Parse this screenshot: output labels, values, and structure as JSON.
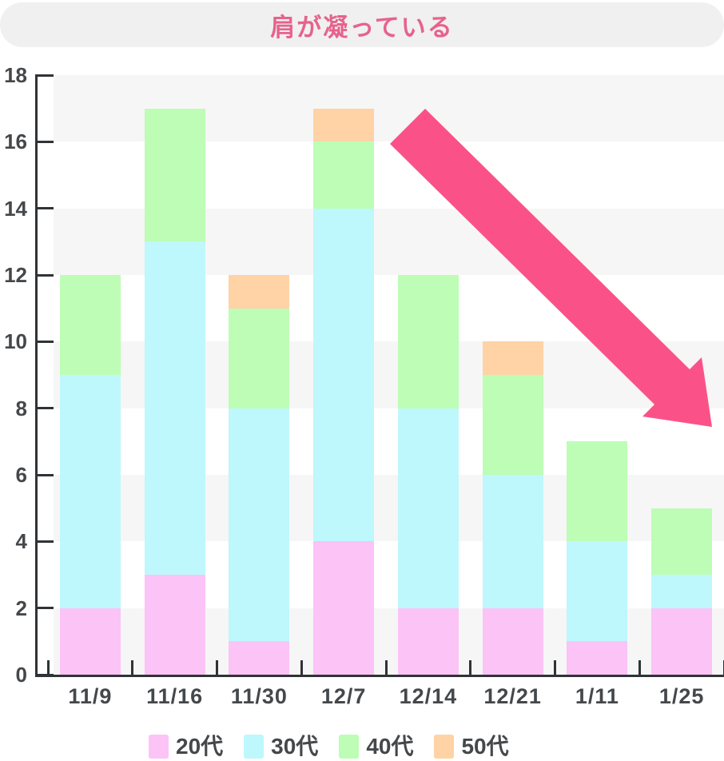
{
  "title": {
    "text": "肩が凝っている",
    "color": "#E7628D",
    "pill_bg": "#F0F0F0"
  },
  "chart_data": {
    "type": "bar",
    "stacked": true,
    "title": "肩が凝っている",
    "categories": [
      "11/9",
      "11/16",
      "11/30",
      "12/7",
      "12/14",
      "12/21",
      "1/11",
      "1/25"
    ],
    "series": [
      {
        "name": "20代",
        "color": "#FBC3F6",
        "values": [
          2,
          3,
          1,
          4,
          2,
          2,
          1,
          2
        ]
      },
      {
        "name": "30代",
        "color": "#BEF7FC",
        "values": [
          7,
          10,
          7,
          10,
          6,
          4,
          3,
          1
        ]
      },
      {
        "name": "40代",
        "color": "#BDFDB6",
        "values": [
          3,
          4,
          3,
          2,
          4,
          3,
          3,
          2
        ]
      },
      {
        "name": "50代",
        "color": "#FFD3A6",
        "values": [
          0,
          0,
          1,
          1,
          0,
          1,
          0,
          0
        ]
      }
    ],
    "totals": [
      12,
      17,
      12,
      17,
      12,
      10,
      7,
      5
    ],
    "xlabel": "",
    "ylabel": "",
    "ylim": [
      0,
      18
    ],
    "ytick_step": 2,
    "yticks": [
      0,
      2,
      4,
      6,
      8,
      10,
      12,
      14,
      16,
      18
    ],
    "grid": "alternating-horizontal-bands",
    "band_color": "#F6F6F6",
    "axis_color": "#303336",
    "label_color": "#45484B",
    "legend_position": "bottom",
    "annotation": {
      "type": "downward-trend-arrow",
      "color": "#FA5288"
    }
  }
}
